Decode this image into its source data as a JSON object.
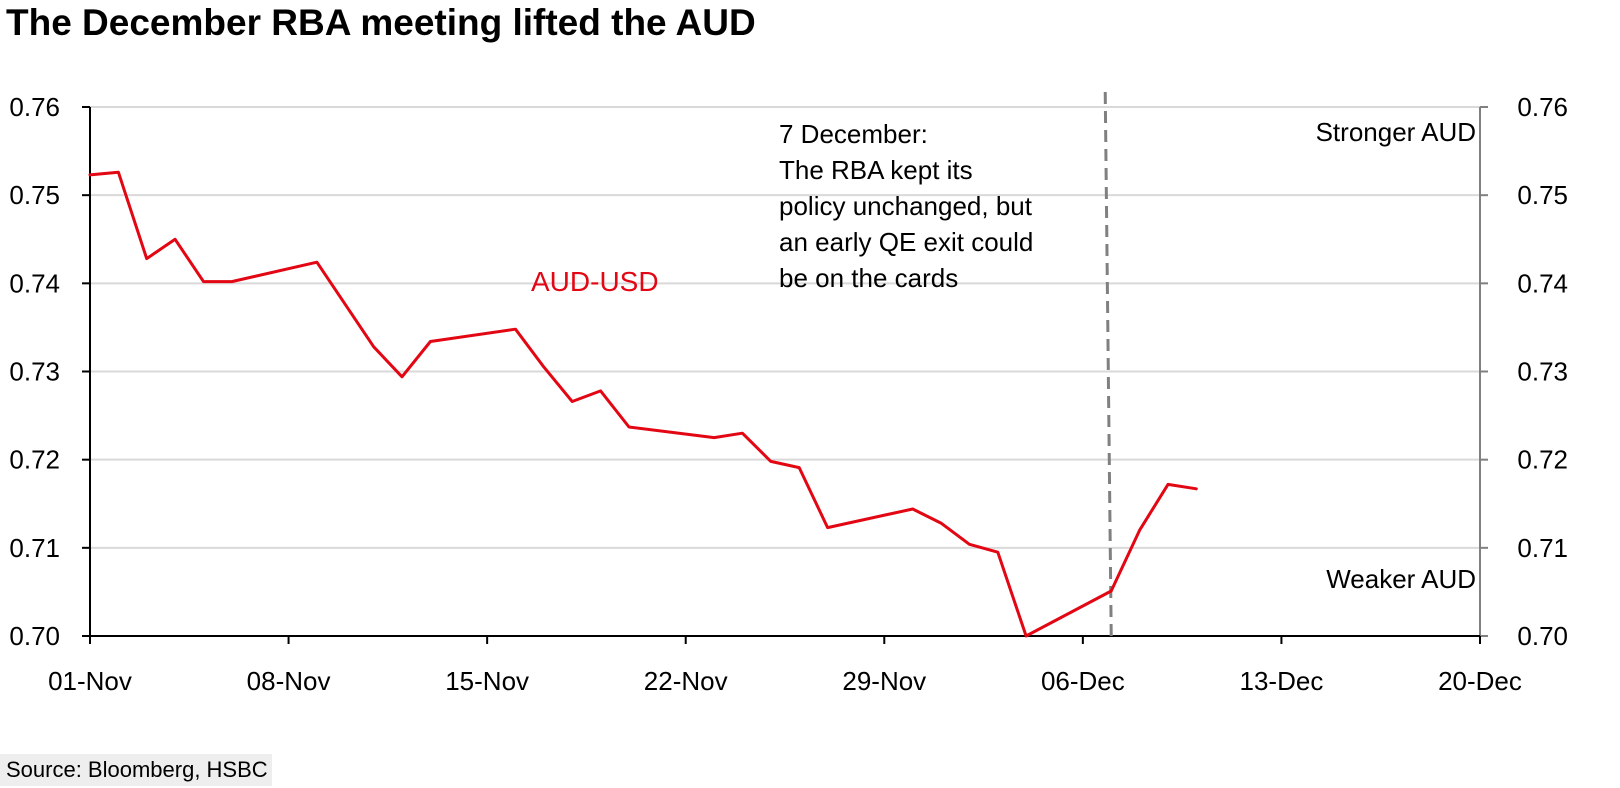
{
  "title": "The December RBA meeting lifted the AUD",
  "source": "Source: Bloomberg, HSBC",
  "chart_data": {
    "type": "line",
    "title": "The December RBA meeting lifted the AUD",
    "xlabel": "",
    "ylabel": "",
    "x_ticks": [
      "01-Nov",
      "08-Nov",
      "15-Nov",
      "22-Nov",
      "29-Nov",
      "06-Dec",
      "13-Dec",
      "20-Dec"
    ],
    "y_ticks": [
      "0.70",
      "0.71",
      "0.72",
      "0.73",
      "0.74",
      "0.75",
      "0.76"
    ],
    "y_ticks_right": [
      "0.70",
      "0.71",
      "0.72",
      "0.73",
      "0.74",
      "0.75",
      "0.76"
    ],
    "ylim": [
      0.7,
      0.76
    ],
    "xlim": [
      "2021-11-01",
      "2021-12-20"
    ],
    "grid": "horizontal",
    "series": [
      {
        "name": "AUD-USD",
        "color": "#e30613",
        "x": [
          "2021-11-01",
          "2021-11-02",
          "2021-11-03",
          "2021-11-04",
          "2021-11-05",
          "2021-11-06",
          "2021-11-09",
          "2021-11-11",
          "2021-11-12",
          "2021-11-13",
          "2021-11-16",
          "2021-11-17",
          "2021-11-18",
          "2021-11-19",
          "2021-11-20",
          "2021-11-23",
          "2021-11-24",
          "2021-11-25",
          "2021-11-26",
          "2021-11-27",
          "2021-11-30",
          "2021-12-01",
          "2021-12-02",
          "2021-12-03",
          "2021-12-04",
          "2021-12-07",
          "2021-12-08",
          "2021-12-09",
          "2021-12-10"
        ],
        "values": [
          0.7523,
          0.7526,
          0.7428,
          0.745,
          0.7402,
          0.7402,
          0.7424,
          0.7328,
          0.7294,
          0.7334,
          0.7348,
          0.7305,
          0.7266,
          0.7278,
          0.7237,
          0.7225,
          0.723,
          0.7198,
          0.7191,
          0.7123,
          0.7144,
          0.7128,
          0.7104,
          0.7095,
          0.7,
          0.7051,
          0.712,
          0.7172,
          0.7167
        ]
      }
    ],
    "series_label": "AUD-USD",
    "event_line": {
      "date": "2021-12-07",
      "style": "dashed",
      "color": "#808080"
    },
    "annotation_lines": [
      "7 December:",
      "The RBA kept its",
      "policy unchanged, but",
      "an early QE exit could",
      "be on the cards"
    ],
    "right_top_label": "Stronger AUD",
    "right_bottom_label": "Weaker AUD"
  }
}
